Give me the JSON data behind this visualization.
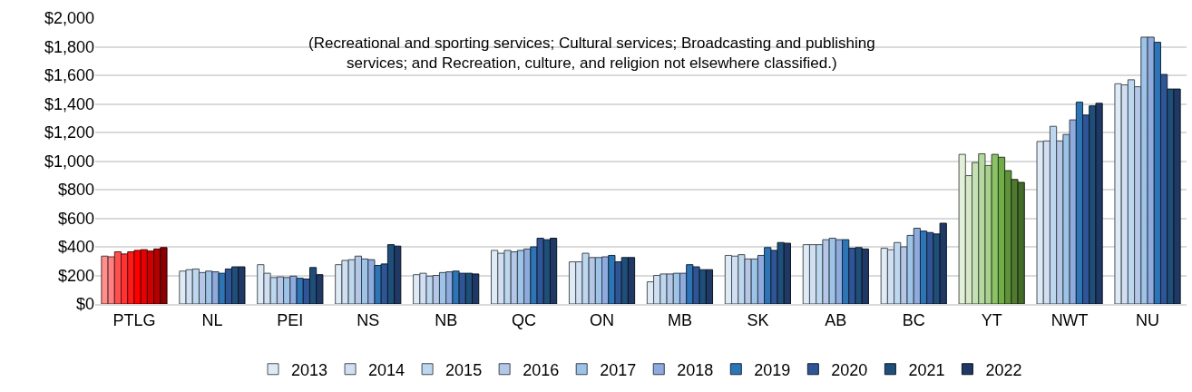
{
  "chart_data": {
    "type": "bar",
    "categories": [
      "PTLG",
      "NL",
      "PEI",
      "NS",
      "NB",
      "QC",
      "ON",
      "MB",
      "SK",
      "AB",
      "BC",
      "YT",
      "NWT",
      "NU"
    ],
    "annotations": [
      "(Recreational and sporting services; Cultural services; Broadcasting and publishing services; and Recreation, culture, and religion not elsewhere classified.)"
    ],
    "series": [
      {
        "name": "2013",
        "color": "#deebf7",
        "colors": [
          "#ff8f8f",
          "#deebf7",
          "#deebf7",
          "#deebf7",
          "#deebf7",
          "#deebf7",
          "#deebf7",
          "#deebf7",
          "#deebf7",
          "#deebf7",
          "#deebf7",
          "#e2f0d9",
          "#deebf7",
          "#deebf7"
        ],
        "values": [
          335,
          230,
          275,
          275,
          205,
          375,
          295,
          155,
          340,
          415,
          390,
          1047,
          1137,
          1541
        ]
      },
      {
        "name": "2014",
        "color": "#d0dff2",
        "colors": [
          "#ff8080",
          "#d0dff2",
          "#d0dff2",
          "#d0dff2",
          "#d0dff2",
          "#d0dff2",
          "#d0dff2",
          "#d0dff2",
          "#d0dff2",
          "#d0dff2",
          "#d0dff2",
          "#d5e8c8",
          "#d0dff2",
          "#d0dff2"
        ],
        "values": [
          330,
          240,
          215,
          305,
          215,
          355,
          295,
          200,
          335,
          415,
          380,
          898,
          1141,
          1533
        ]
      },
      {
        "name": "2015",
        "color": "#bdd7ee",
        "colors": [
          "#ff5050",
          "#bdd7ee",
          "#bdd7ee",
          "#bdd7ee",
          "#bdd7ee",
          "#bdd7ee",
          "#bdd7ee",
          "#bdd7ee",
          "#bdd7ee",
          "#bdd7ee",
          "#bdd7ee",
          "#c5e0b4",
          "#bdd7ee",
          "#bdd7ee"
        ],
        "values": [
          365,
          245,
          185,
          310,
          195,
          375,
          355,
          210,
          345,
          415,
          430,
          990,
          1243,
          1569
        ]
      },
      {
        "name": "2016",
        "color": "#b4c7e7",
        "colors": [
          "#ff3333",
          "#b4c7e7",
          "#b4c7e7",
          "#b4c7e7",
          "#b4c7e7",
          "#b4c7e7",
          "#b4c7e7",
          "#b4c7e7",
          "#b4c7e7",
          "#b4c7e7",
          "#b4c7e7",
          "#b4d89f",
          "#b4c7e7",
          "#b4c7e7"
        ],
        "values": [
          350,
          220,
          190,
          335,
          200,
          365,
          325,
          210,
          315,
          450,
          400,
          1051,
          1141,
          1520
        ]
      },
      {
        "name": "2017",
        "color": "#9dc3e6",
        "colors": [
          "#ff1a1a",
          "#9dc3e6",
          "#9dc3e6",
          "#9dc3e6",
          "#9dc3e6",
          "#9dc3e6",
          "#9dc3e6",
          "#9dc3e6",
          "#9dc3e6",
          "#9dc3e6",
          "#9dc3e6",
          "#a9d18e",
          "#9dc3e6",
          "#9dc3e6"
        ],
        "values": [
          365,
          230,
          185,
          315,
          220,
          375,
          325,
          215,
          315,
          460,
          480,
          969,
          1186,
          1867
        ]
      },
      {
        "name": "2018",
        "color": "#8faadc",
        "colors": [
          "#ff0000",
          "#8faadc",
          "#8faadc",
          "#8faadc",
          "#8faadc",
          "#8faadc",
          "#8faadc",
          "#8faadc",
          "#8faadc",
          "#8faadc",
          "#8faadc",
          "#8cc168",
          "#8faadc",
          "#8faadc"
        ],
        "values": [
          375,
          225,
          195,
          310,
          225,
          385,
          330,
          215,
          340,
          450,
          530,
          1047,
          1288,
          1867
        ]
      },
      {
        "name": "2019",
        "color": "#2e75b6",
        "colors": [
          "#e60000",
          "#2e75b6",
          "#2e75b6",
          "#2e75b6",
          "#2e75b6",
          "#2e75b6",
          "#2e75b6",
          "#2e75b6",
          "#2e75b6",
          "#2e75b6",
          "#2e75b6",
          "#70ad47",
          "#2e75b6",
          "#2e75b6"
        ],
        "values": [
          380,
          215,
          180,
          270,
          230,
          400,
          340,
          275,
          395,
          450,
          510,
          1027,
          1412,
          1831
        ]
      },
      {
        "name": "2020",
        "color": "#2f5597",
        "colors": [
          "#cc0000",
          "#2f5597",
          "#2f5597",
          "#2f5597",
          "#2f5597",
          "#2f5597",
          "#2f5597",
          "#2f5597",
          "#2f5597",
          "#2f5597",
          "#2f5597",
          "#5f933a",
          "#2f5597",
          "#2f5597"
        ],
        "values": [
          370,
          245,
          175,
          280,
          215,
          460,
          295,
          260,
          375,
          390,
          500,
          933,
          1322,
          1606
        ]
      },
      {
        "name": "2021",
        "color": "#1f4e79",
        "colors": [
          "#b30000",
          "#1f4e79",
          "#1f4e79",
          "#1f4e79",
          "#1f4e79",
          "#1f4e79",
          "#1f4e79",
          "#1f4e79",
          "#1f4e79",
          "#1f4e79",
          "#1f4e79",
          "#4f7a30",
          "#1f4e79",
          "#1f4e79"
        ],
        "values": [
          385,
          260,
          255,
          415,
          215,
          450,
          325,
          240,
          430,
          395,
          490,
          871,
          1386,
          1504
        ]
      },
      {
        "name": "2022",
        "color": "#203864",
        "colors": [
          "#8b0000",
          "#203864",
          "#203864",
          "#203864",
          "#203864",
          "#203864",
          "#203864",
          "#203864",
          "#203864",
          "#203864",
          "#203864",
          "#436a28",
          "#203864",
          "#203864"
        ],
        "values": [
          395,
          260,
          205,
          405,
          210,
          460,
          325,
          240,
          425,
          385,
          565,
          851,
          1404,
          1504
        ]
      }
    ],
    "ylim": [
      0,
      2000
    ],
    "yticks": [
      {
        "value": 0,
        "label": "$0"
      },
      {
        "value": 200,
        "label": "$200"
      },
      {
        "value": 400,
        "label": "$400"
      },
      {
        "value": 600,
        "label": "$600"
      },
      {
        "value": 800,
        "label": "$800"
      },
      {
        "value": 1000,
        "label": "$1,000"
      },
      {
        "value": 1200,
        "label": "$1,200"
      },
      {
        "value": 1400,
        "label": "$1,400"
      },
      {
        "value": 1600,
        "label": "$1,600"
      },
      {
        "value": 1800,
        "label": "$1,800"
      },
      {
        "value": 2000,
        "label": "$2,000"
      }
    ],
    "grid": "y",
    "legend": "bottom"
  }
}
